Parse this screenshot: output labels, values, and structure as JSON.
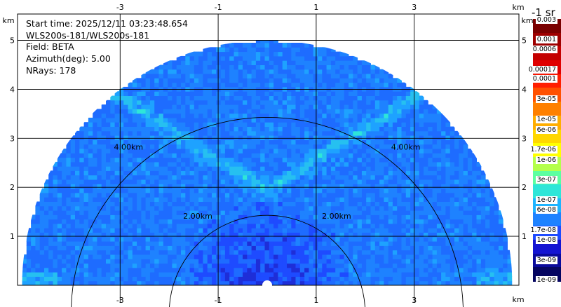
{
  "info": {
    "start_time": "Start time: 2025/12/11 03:23:48.654",
    "instrument": "WLS200s-181/WLS200s-181",
    "field": "Field: BETA",
    "azimuth": "Azimuth(deg): 5.00",
    "nrays": "NRays: 178"
  },
  "chart_data": {
    "type": "heatmap",
    "projection": "RHI half-disc (polar sector)",
    "x_axis_unit": "km",
    "y_axis_unit": "km",
    "x_ticks": [
      "-3",
      "-1",
      "1",
      "3"
    ],
    "y_ticks": [
      "1",
      "2",
      "3",
      "4",
      "5"
    ],
    "xlim": [
      -5.1,
      5.3
    ],
    "ylim": [
      -0.5,
      5.5
    ],
    "max_range_km": 5.0,
    "range_rings": [
      {
        "radius_km": 2.0,
        "label": "2.00km"
      },
      {
        "radius_km": 4.0,
        "label": "4.00km"
      }
    ],
    "colorbar": {
      "units_label": "-1 sr",
      "labels": [
        "0.003",
        "0.001",
        "0.0006",
        "0.00017",
        "0.0001",
        "3e-05",
        "1e-05",
        "6e-06",
        "1.7e-06",
        "1e-06",
        "3e-07",
        "1e-07",
        "6e-08",
        "1.7e-08",
        "1e-08",
        "3e-09",
        "1e-09"
      ],
      "colors": [
        "#7a0000",
        "#9e0000",
        "#c40000",
        "#e00000",
        "#ff1e00",
        "#ff5000",
        "#ff8000",
        "#ffae00",
        "#ffd700",
        "#ffff00",
        "#b4ff4b",
        "#5cffa0",
        "#2ee6d8",
        "#1eb4ff",
        "#1e82ff",
        "#1e4bff",
        "#1414d2",
        "#0a0a9c",
        "#050560"
      ]
    },
    "features": [
      {
        "name": "v-shaped enhanced layer",
        "beta": "1e-07",
        "apex_km": [
          0.0,
          1.95
        ],
        "arms_to_km": [
          [
            -3.3,
            4.0
          ],
          [
            3.3,
            4.0
          ]
        ]
      },
      {
        "name": "near-surface low return",
        "beta": "1e-08",
        "range_km": [
          0.0,
          1.7
        ]
      },
      {
        "name": "background",
        "beta": "3e-08"
      }
    ]
  }
}
